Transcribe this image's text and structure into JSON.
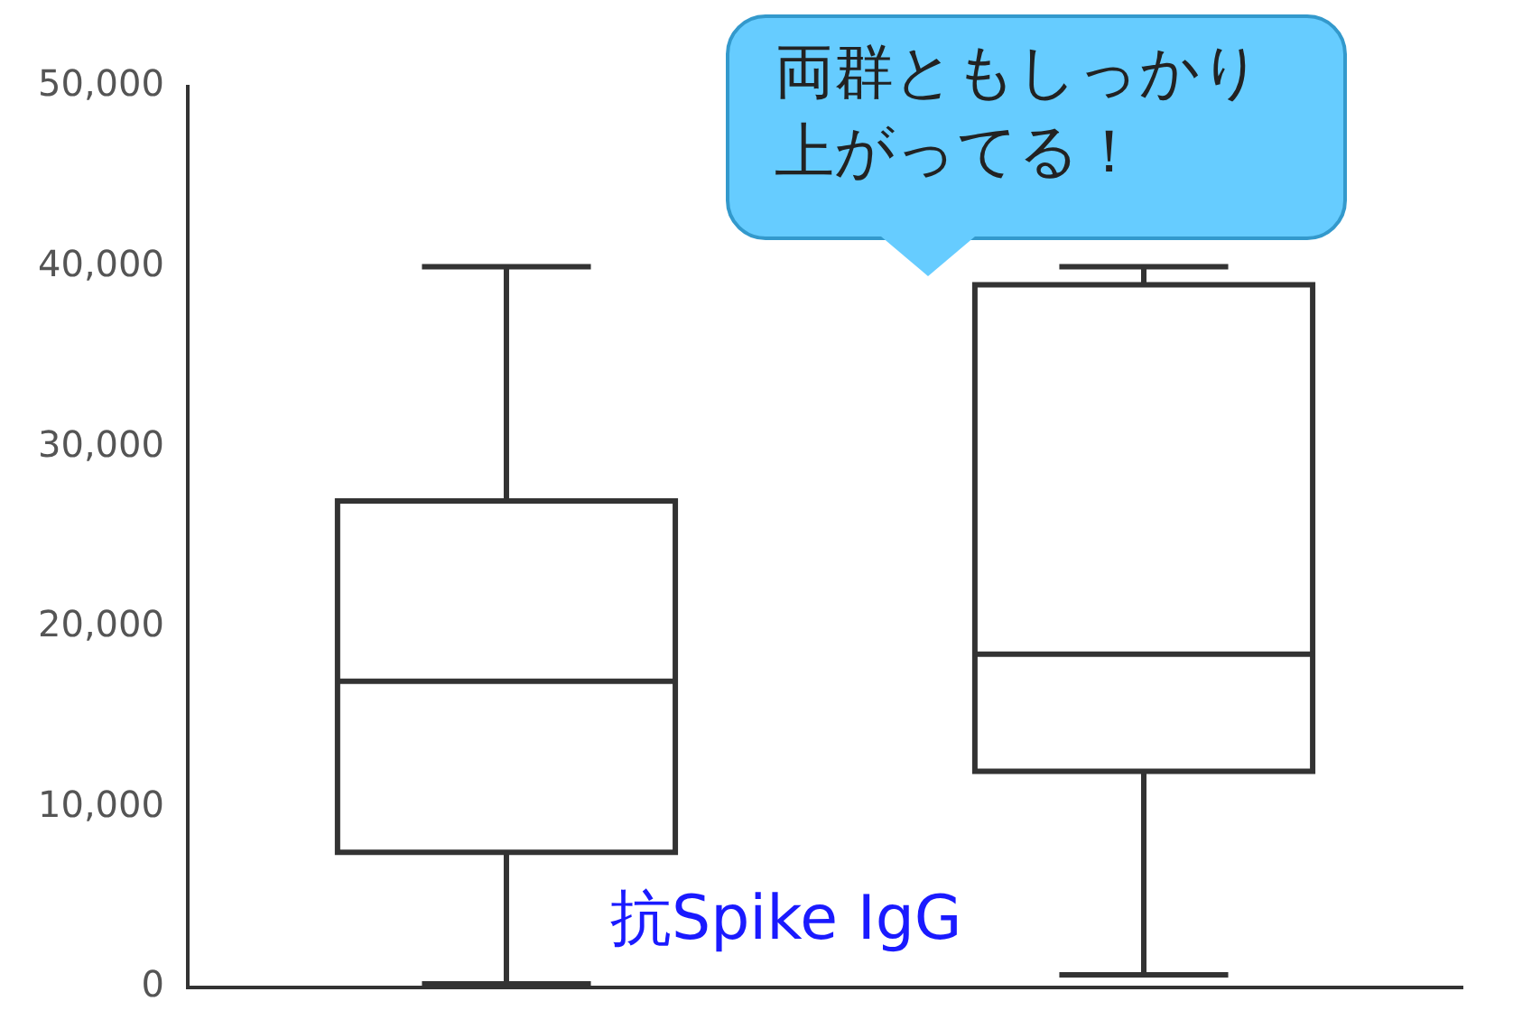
{
  "chart_data": {
    "type": "box",
    "categories": [
      null,
      null
    ],
    "boxes": [
      {
        "low": 200,
        "q1": 7500,
        "median": 17000,
        "q3": 27000,
        "high": 40000
      },
      {
        "low": 700,
        "q1": 12000,
        "median": 18500,
        "q3": 39000,
        "high": 40000
      }
    ],
    "ylim": [
      0,
      50000
    ],
    "yticks": [
      0,
      {
        "value": 10000,
        "label": "10,000"
      },
      {
        "value": 20000,
        "label": "20,000"
      },
      {
        "value": 30000,
        "label": "30,000"
      },
      {
        "value": 40000,
        "label": "40,000"
      },
      {
        "value": 50000,
        "label": "50,000"
      }
    ],
    "grid": false,
    "annotations": [
      "両群ともしっかり上がってる！",
      "抗Spike IgG"
    ]
  }
}
